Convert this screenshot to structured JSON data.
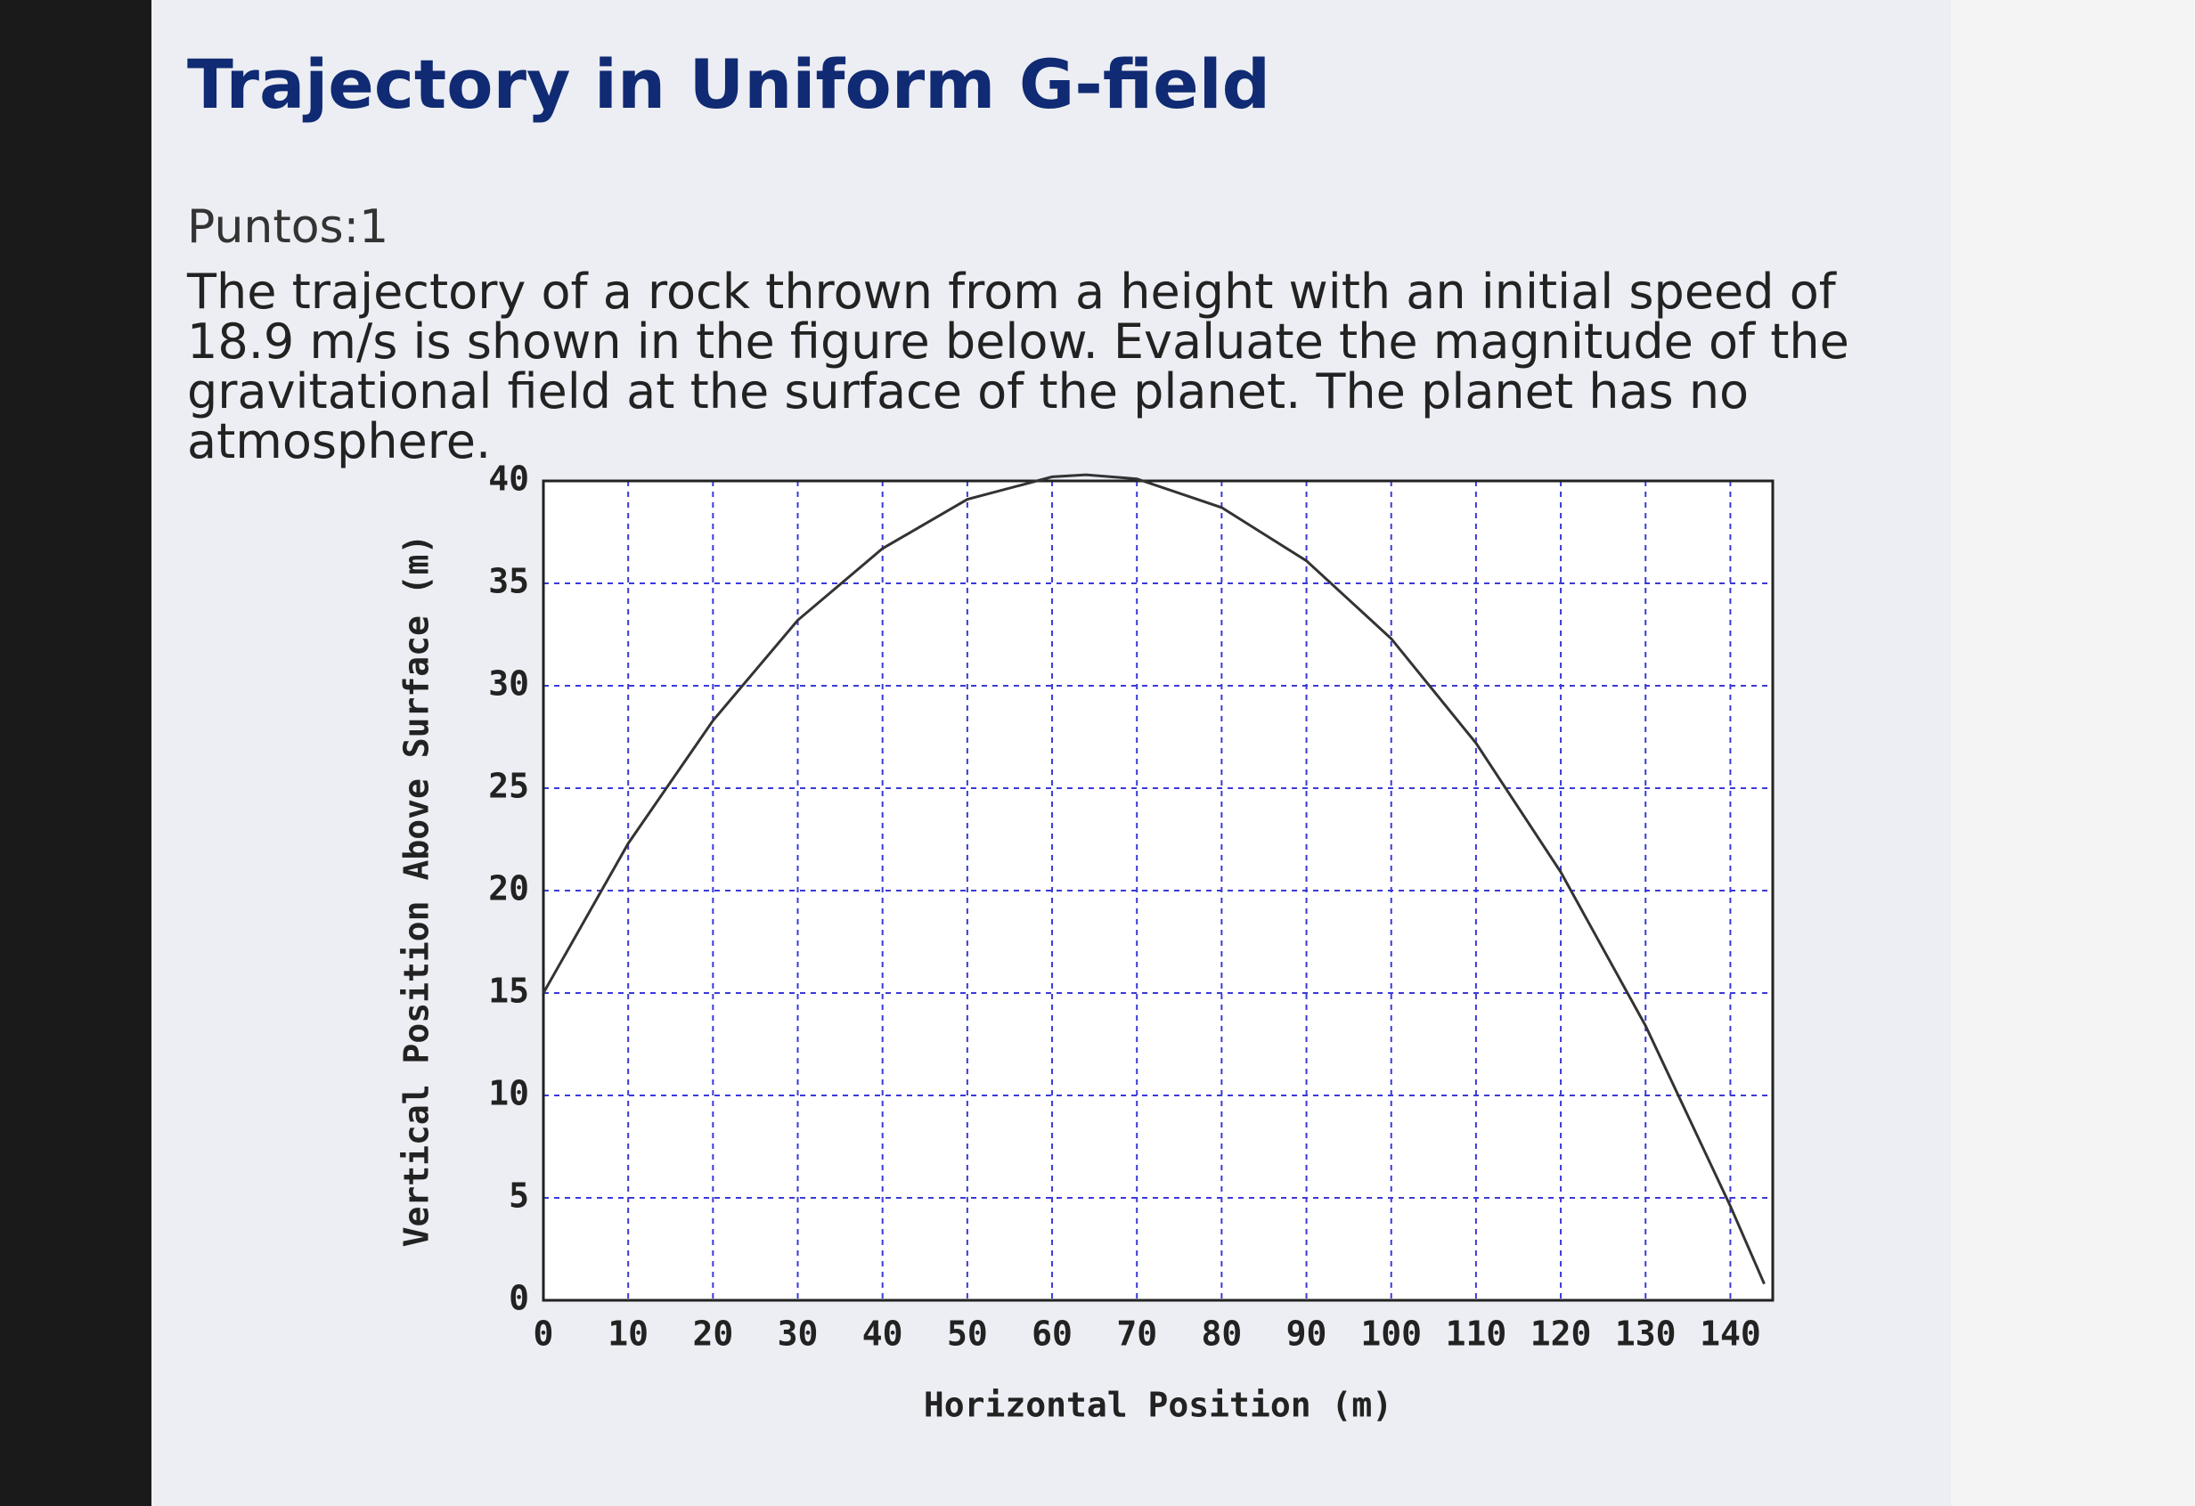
{
  "header": {
    "title": "Trajectory in Uniform G-field"
  },
  "points": "Puntos:1",
  "question": "The trajectory of a rock thrown from a height with an initial speed of 18.9 m/s is shown in the figure below. Evaluate the magnitude of the gravitational field at the surface of the planet. The planet has no atmosphere.",
  "chart_data": {
    "type": "line",
    "x_label": "Horizontal Position (m)",
    "y_label": "Vertical Position Above Surface (m)",
    "x": [
      0,
      10,
      20,
      30,
      40,
      50,
      60,
      64,
      70,
      80,
      90,
      100,
      110,
      120,
      130,
      140,
      144
    ],
    "values": [
      15.0,
      22.3,
      28.3,
      33.2,
      36.7,
      39.1,
      40.2,
      40.3,
      40.1,
      38.7,
      36.1,
      32.3,
      27.2,
      20.9,
      13.4,
      4.6,
      0.8
    ],
    "color": "#333333",
    "xlim": [
      0,
      145
    ],
    "xticks": [
      0,
      10,
      20,
      30,
      40,
      50,
      60,
      70,
      80,
      90,
      100,
      110,
      120,
      130,
      140
    ],
    "ylim": [
      0,
      40
    ],
    "yticks": [
      0,
      5,
      10,
      15,
      20,
      25,
      30,
      35,
      40
    ],
    "grid": true,
    "grid_color": "#3a3ad8"
  }
}
